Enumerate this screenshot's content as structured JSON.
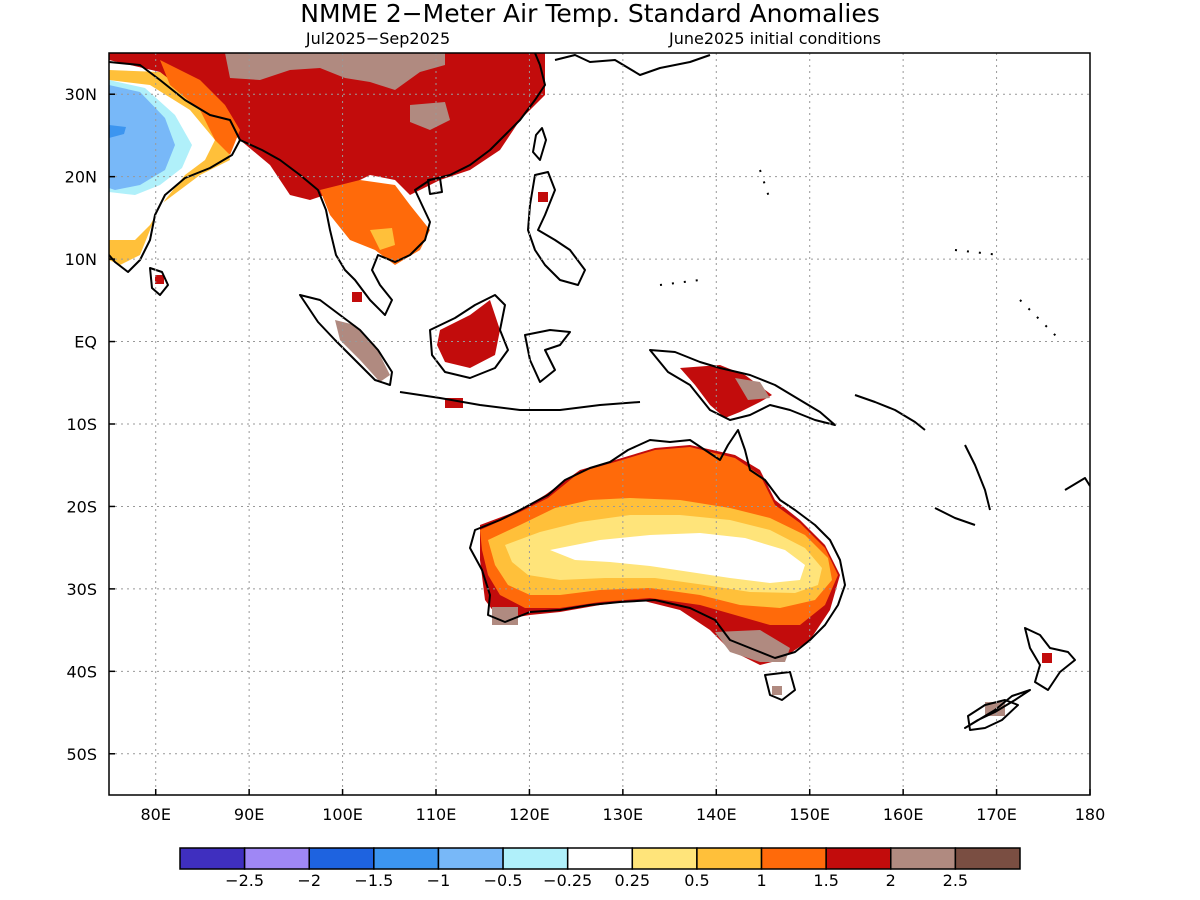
{
  "title": "NMME 2−Meter Air Temp. Standard Anomalies",
  "subtitle_left": "Jul2025−Sep2025",
  "subtitle_right": "June2025 initial conditions",
  "map": {
    "region": "South & Southeast Asia, Maritime Continent, Australia, New Zealand",
    "projection": "lat-lon",
    "lon_range": [
      75,
      180
    ],
    "lat_range": [
      -55,
      35
    ],
    "grid": "dotted",
    "lat_ticks": [
      {
        "value": 30,
        "label": "30N"
      },
      {
        "value": 20,
        "label": "20N"
      },
      {
        "value": 10,
        "label": "10N"
      },
      {
        "value": 0,
        "label": "EQ"
      },
      {
        "value": -10,
        "label": "10S"
      },
      {
        "value": -20,
        "label": "20S"
      },
      {
        "value": -30,
        "label": "30S"
      },
      {
        "value": -40,
        "label": "40S"
      },
      {
        "value": -50,
        "label": "50S"
      }
    ],
    "lon_ticks": [
      {
        "value": 80,
        "label": "80E"
      },
      {
        "value": 90,
        "label": "90E"
      },
      {
        "value": 100,
        "label": "100E"
      },
      {
        "value": 110,
        "label": "110E"
      },
      {
        "value": 120,
        "label": "120E"
      },
      {
        "value": 130,
        "label": "130E"
      },
      {
        "value": 140,
        "label": "140E"
      },
      {
        "value": 150,
        "label": "150E"
      },
      {
        "value": 160,
        "label": "160E"
      },
      {
        "value": 170,
        "label": "170E"
      },
      {
        "value": 180,
        "label": "180"
      }
    ]
  },
  "colorbar": {
    "colors": [
      "#3f2fbf",
      "#9f87f5",
      "#1e63e0",
      "#3c95f0",
      "#78b8f8",
      "#b0f0fa",
      "#ffffff",
      "#ffe47a",
      "#ffc03a",
      "#ff6a0a",
      "#c20c0c",
      "#b08a80",
      "#7a4e42"
    ],
    "labels": [
      "−2.5",
      "−2",
      "−1.5",
      "−1",
      "−0.5",
      "−0.25",
      "0.25",
      "0.5",
      "1",
      "1.5",
      "2",
      "2.5"
    ]
  }
}
